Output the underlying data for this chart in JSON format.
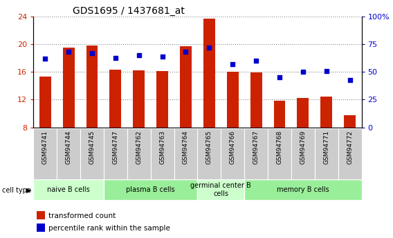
{
  "title": "GDS1695 / 1437681_at",
  "samples": [
    "GSM94741",
    "GSM94744",
    "GSM94745",
    "GSM94747",
    "GSM94762",
    "GSM94763",
    "GSM94764",
    "GSM94765",
    "GSM94766",
    "GSM94767",
    "GSM94768",
    "GSM94769",
    "GSM94771",
    "GSM94772"
  ],
  "transformed_count": [
    15.3,
    19.5,
    19.8,
    16.3,
    16.2,
    16.1,
    19.7,
    23.7,
    16.0,
    15.9,
    11.8,
    12.2,
    12.4,
    9.8
  ],
  "percentile_rank": [
    62,
    68,
    67,
    63,
    65,
    64,
    68,
    72,
    57,
    60,
    45,
    50,
    51,
    43
  ],
  "bar_color": "#cc2200",
  "dot_color": "#0000cc",
  "ymin": 8,
  "ymax": 24,
  "yticks": [
    8,
    12,
    16,
    20,
    24
  ],
  "y2min": 0,
  "y2max": 100,
  "y2ticks": [
    0,
    25,
    50,
    75,
    100
  ],
  "y2ticklabels": [
    "0",
    "25",
    "50",
    "75",
    "100%"
  ],
  "cell_type_groups": [
    {
      "label": "naive B cells",
      "start": 0,
      "end": 3,
      "color": "#ccffcc"
    },
    {
      "label": "plasma B cells",
      "start": 3,
      "end": 7,
      "color": "#99ee99"
    },
    {
      "label": "germinal center B\ncells",
      "start": 7,
      "end": 9,
      "color": "#ccffcc"
    },
    {
      "label": "memory B cells",
      "start": 9,
      "end": 14,
      "color": "#99ee99"
    }
  ],
  "bar_color_red": "#cc2200",
  "dot_color_blue": "#0000cc",
  "grid_color": "#888888",
  "bg_color": "#ffffff",
  "tick_label_bg": "#cccccc",
  "legend_red_label": "transformed count",
  "legend_blue_label": "percentile rank within the sample",
  "sample_label_bg": "#cccccc"
}
